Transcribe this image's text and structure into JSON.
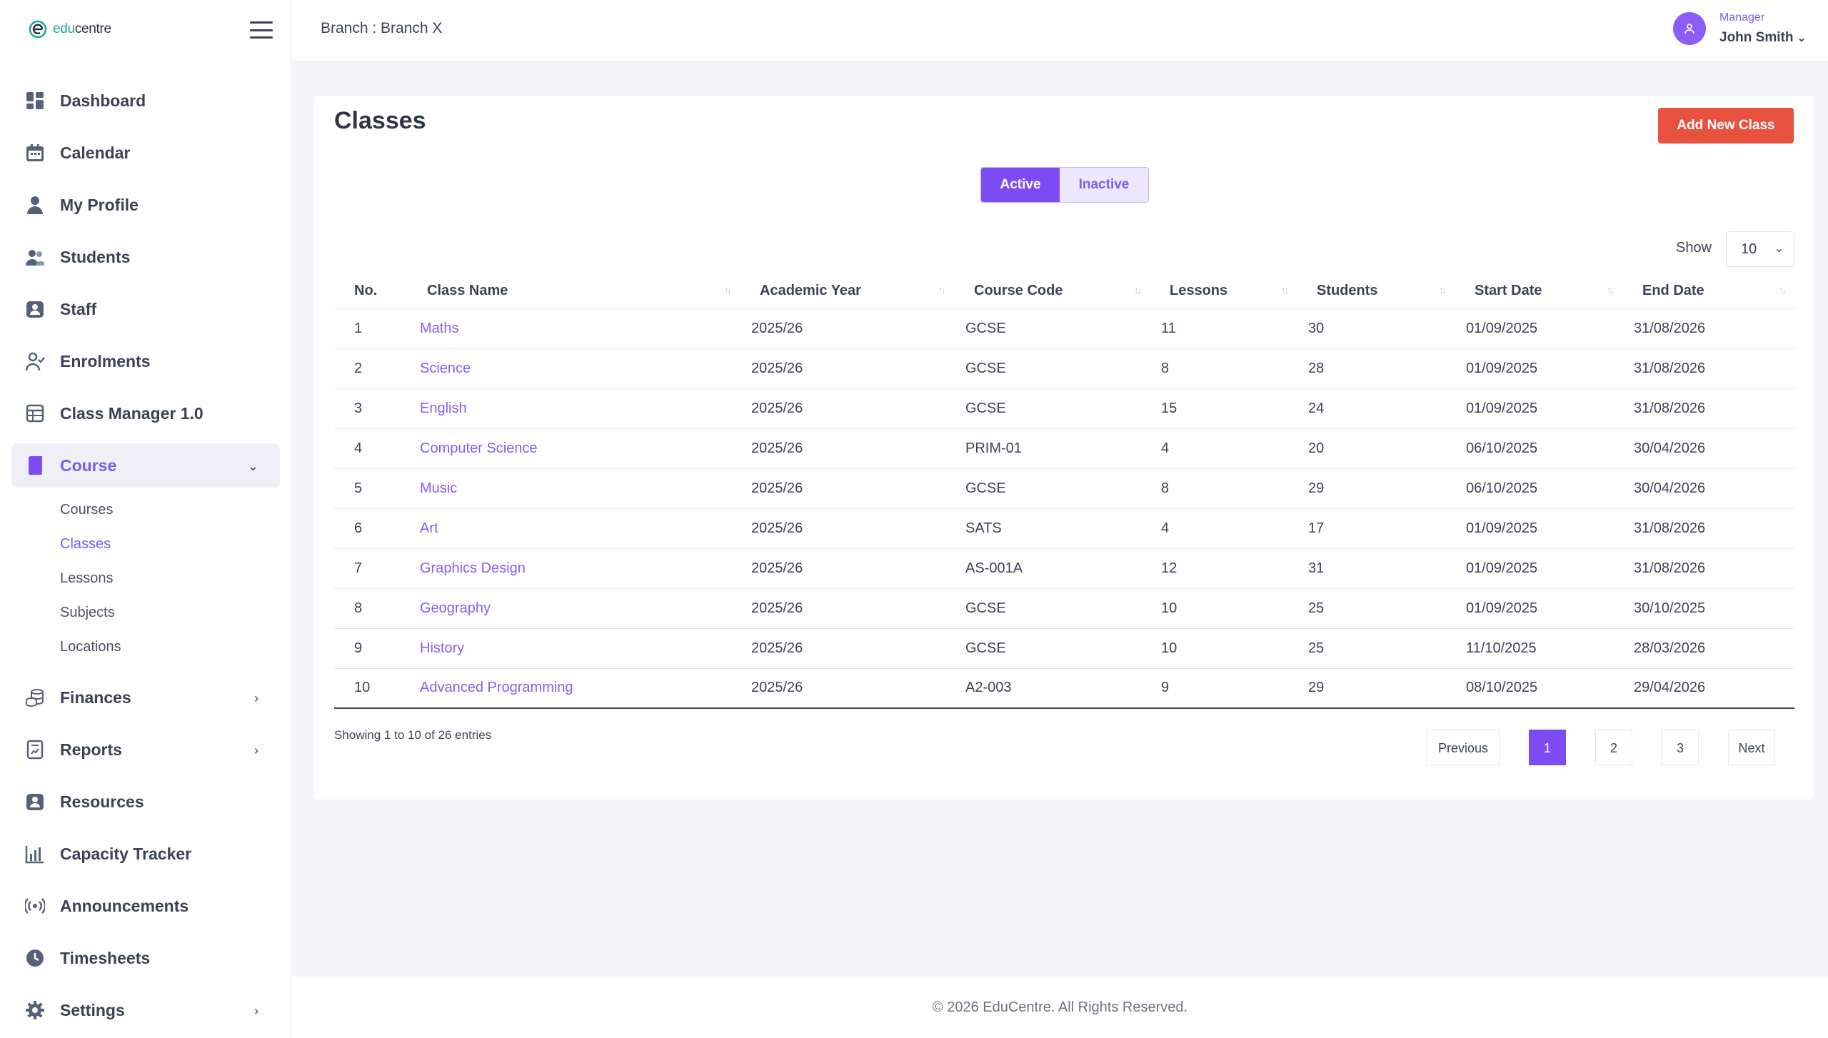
{
  "brand": {
    "name_prefix": "edu",
    "name_suffix": "centre"
  },
  "header": {
    "branch": "Branch : Branch X",
    "user_role": "Manager",
    "user_name": "John Smith"
  },
  "sidebar": {
    "items": [
      {
        "label": "Dashboard",
        "icon": "dashboard-icon"
      },
      {
        "label": "Calendar",
        "icon": "calendar-icon"
      },
      {
        "label": "My Profile",
        "icon": "person-icon"
      },
      {
        "label": "Students",
        "icon": "users-icon"
      },
      {
        "label": "Staff",
        "icon": "staff-badge-icon"
      },
      {
        "label": "Enrolments",
        "icon": "user-check-icon"
      },
      {
        "label": "Class Manager 1.0",
        "icon": "table-icon"
      },
      {
        "label": "Course",
        "icon": "book-icon"
      },
      {
        "label": "Finances",
        "icon": "coins-icon"
      },
      {
        "label": "Reports",
        "icon": "report-icon"
      },
      {
        "label": "Resources",
        "icon": "resources-icon"
      },
      {
        "label": "Capacity Tracker",
        "icon": "bar-chart-icon"
      },
      {
        "label": "Announcements",
        "icon": "broadcast-icon"
      },
      {
        "label": "Timesheets",
        "icon": "clock-icon"
      },
      {
        "label": "Settings",
        "icon": "gear-icon"
      }
    ],
    "course_sub": [
      "Courses",
      "Classes",
      "Lessons",
      "Subjects",
      "Locations"
    ]
  },
  "main": {
    "title": "Classes",
    "add_button": "Add New Class",
    "toggle": {
      "active": "Active",
      "inactive": "Inactive"
    },
    "show_label": "Show",
    "show_value": "10",
    "columns": [
      "No.",
      "Class Name",
      "Academic Year",
      "Course Code",
      "Lessons",
      "Students",
      "Start Date",
      "End Date"
    ],
    "rows": [
      [
        "1",
        "Maths",
        "2025/26",
        "GCSE",
        "11",
        "30",
        "01/09/2025",
        "31/08/2026"
      ],
      [
        "2",
        "Science",
        "2025/26",
        "GCSE",
        "8",
        "28",
        "01/09/2025",
        "31/08/2026"
      ],
      [
        "3",
        "English",
        "2025/26",
        "GCSE",
        "15",
        "24",
        "01/09/2025",
        "31/08/2026"
      ],
      [
        "4",
        "Computer Science",
        "2025/26",
        "PRIM-01",
        "4",
        "20",
        "06/10/2025",
        "30/04/2026"
      ],
      [
        "5",
        "Music",
        "2025/26",
        "GCSE",
        "8",
        "29",
        "06/10/2025",
        "30/04/2026"
      ],
      [
        "6",
        "Art",
        "2025/26",
        "SATS",
        "4",
        "17",
        "01/09/2025",
        "31/08/2026"
      ],
      [
        "7",
        "Graphics Design",
        "2025/26",
        "AS-001A",
        "12",
        "31",
        "01/09/2025",
        "31/08/2026"
      ],
      [
        "8",
        "Geography",
        "2025/26",
        "GCSE",
        "10",
        "25",
        "01/09/2025",
        "30/10/2025"
      ],
      [
        "9",
        "History",
        "2025/26",
        "GCSE",
        "10",
        "25",
        "11/10/2025",
        "28/03/2026"
      ],
      [
        "10",
        "Advanced Programming",
        "2025/26",
        "A2-003",
        "9",
        "29",
        "08/10/2025",
        "29/04/2026"
      ]
    ],
    "entries_text": "Showing 1 to 10 of 26 entries",
    "pagination": {
      "prev": "Previous",
      "pages": [
        "1",
        "2",
        "3"
      ],
      "current": "1",
      "next": "Next"
    }
  },
  "footer": {
    "text": "© 2026 EduCentre. All Rights Reserved."
  },
  "colors": {
    "accent": "#7c4cf2",
    "danger": "#e9513f",
    "text": "#3a4356"
  }
}
